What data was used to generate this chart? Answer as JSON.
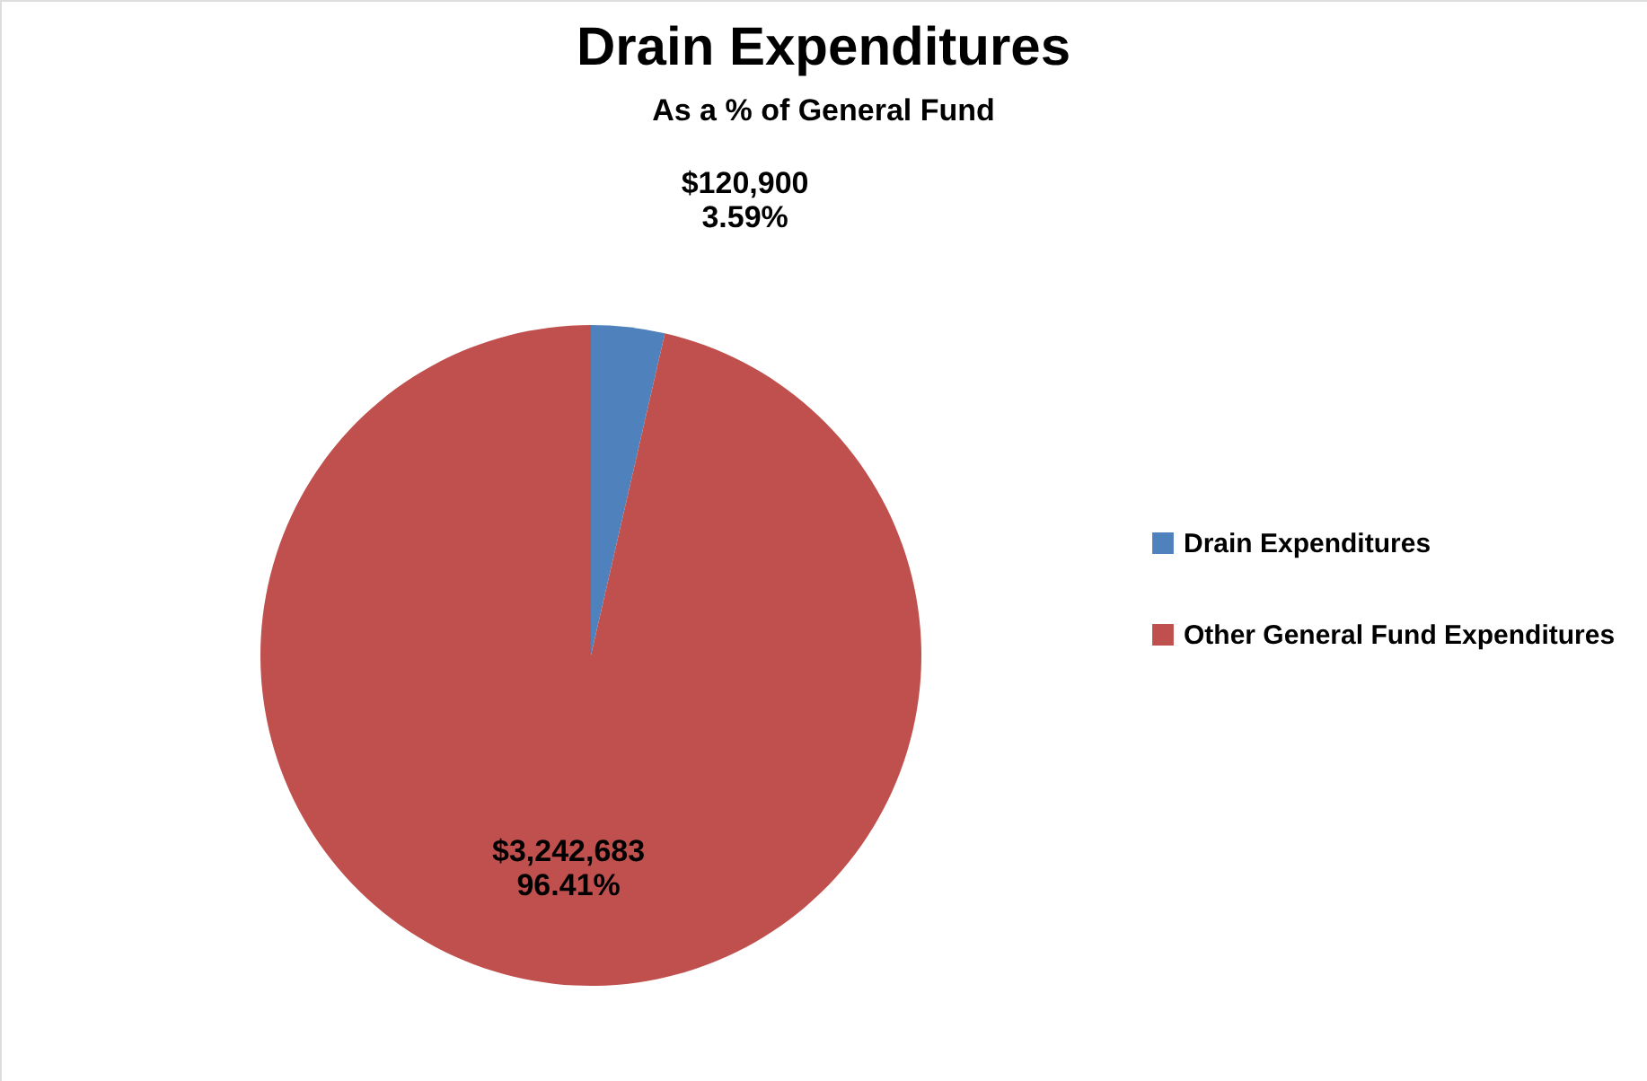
{
  "chart_data": {
    "type": "pie",
    "title": "Drain Expenditures",
    "subtitle": "As a % of General Fund",
    "categories": [
      "Drain Expenditures",
      "Other General Fund Expenditures"
    ],
    "values": [
      120900,
      3242683
    ],
    "colors": [
      "#4f81bd",
      "#c0504d"
    ],
    "value_labels": [
      "$120,900\n3.59%",
      "$3,242,683\n96.41%"
    ],
    "legend": "right"
  }
}
